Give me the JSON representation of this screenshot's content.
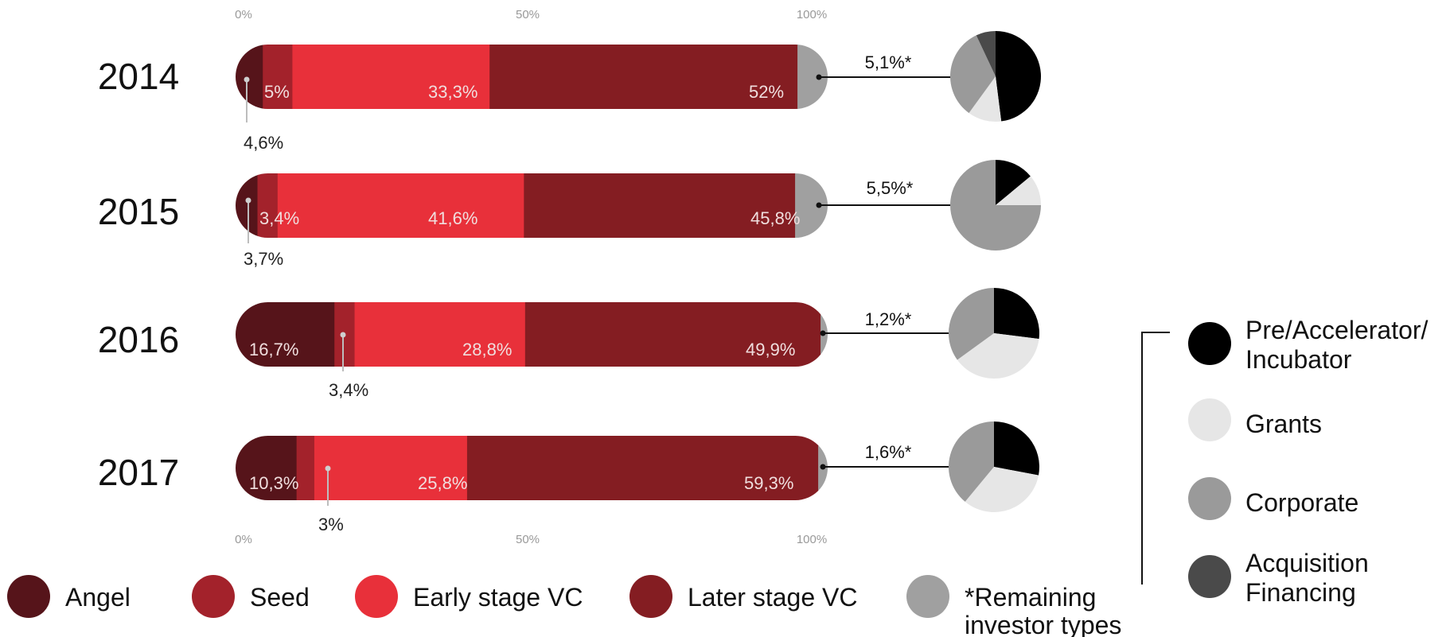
{
  "chart_data": {
    "type": "bar",
    "orientation": "horizontal",
    "stacked": true,
    "normalized": true,
    "x_ticks": [
      "0%",
      "50%",
      "100%"
    ],
    "xlim": [
      0,
      100
    ],
    "categories": [
      "2014",
      "2015",
      "2016",
      "2017"
    ],
    "series": [
      {
        "name": "Angel",
        "color": "#56141a",
        "values": [
          4.6,
          3.7,
          16.7,
          10.3
        ],
        "labels": [
          "4,6%",
          "3,7%",
          "16,7%",
          "10,3%"
        ]
      },
      {
        "name": "Seed",
        "color": "#a3222b",
        "values": [
          5,
          3.4,
          3.4,
          3
        ],
        "labels": [
          "5%",
          "3,4%",
          "3,4%",
          "3%"
        ]
      },
      {
        "name": "Early stage VC",
        "color": "#e8303a",
        "values": [
          33.3,
          41.6,
          28.8,
          25.8
        ],
        "labels": [
          "33,3%",
          "41,6%",
          "28,8%",
          "25,8%"
        ]
      },
      {
        "name": "Later stage VC",
        "color": "#841d22",
        "values": [
          52,
          45.8,
          49.9,
          59.3
        ],
        "labels": [
          "52%",
          "45,8%",
          "49,9%",
          "59,3%"
        ]
      },
      {
        "name": "*Remaining investor types",
        "color": "#a0a0a0",
        "values": [
          5.1,
          5.5,
          1.2,
          1.6
        ],
        "labels": [
          "5,1%*",
          "5,5%*",
          "1,2%*",
          "1,6%*"
        ]
      }
    ],
    "pies": {
      "type": "pie",
      "legend": [
        {
          "name": "Pre/Accelerator/ Incubator",
          "color": "#000000"
        },
        {
          "name": "Grants",
          "color": "#e6e6e6"
        },
        {
          "name": "Corporate",
          "color": "#9a9a9a"
        },
        {
          "name": "Acquisition Financing",
          "color": "#4a4a4a"
        }
      ],
      "values": [
        [
          48,
          12,
          33,
          7
        ],
        [
          14,
          11,
          75,
          0
        ],
        [
          27,
          38,
          35,
          0
        ],
        [
          28,
          33,
          39,
          0
        ]
      ]
    },
    "legend_placement": "bottom"
  }
}
